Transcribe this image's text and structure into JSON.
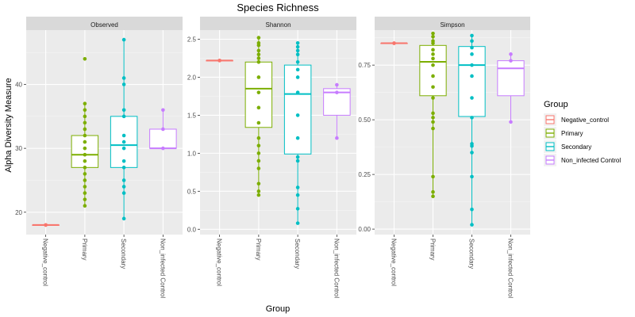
{
  "chart_data": {
    "type": "box",
    "title": "Species Richness",
    "xlabel": "Group",
    "ylabel": "Alpha Diversity Measure",
    "grid": true,
    "legend_position": "right",
    "legend": {
      "title": "Group",
      "items": [
        "Negative_control",
        "Primary",
        "Secondary",
        "Non_infected Control"
      ]
    },
    "groups": [
      "Negative_control",
      "Primary",
      "Secondary",
      "Non_infected Control"
    ],
    "colors": {
      "Negative_control": "#F8766D",
      "Primary": "#7CAE00",
      "Secondary": "#00BFC4",
      "Non_infected Control": "#C77CFF"
    },
    "panels": [
      {
        "name": "Observed",
        "ylim": [
          16.5,
          48.5
        ],
        "yticks": [
          20,
          30,
          40
        ],
        "ytick_labels": [
          "20",
          "30",
          "40"
        ],
        "boxes": [
          {
            "group": "Negative_control",
            "min": 18,
            "q1": 18,
            "median": 18,
            "q3": 18,
            "max": 18
          },
          {
            "group": "Primary",
            "min": 21,
            "q1": 27,
            "median": 29,
            "q3": 32,
            "max": 37
          },
          {
            "group": "Secondary",
            "min": 19,
            "q1": 27,
            "median": 30.5,
            "q3": 35,
            "max": 47
          },
          {
            "group": "Non_infected Control",
            "min": 30,
            "q1": 30,
            "median": 30,
            "q3": 33,
            "max": 36
          }
        ],
        "points": [
          {
            "group": "Negative_control",
            "values": [
              18,
              18
            ]
          },
          {
            "group": "Primary",
            "values": [
              21,
              22,
              23,
              24,
              25,
              26,
              27,
              28,
              29,
              30,
              31,
              32,
              33,
              34,
              35,
              36,
              37,
              44
            ]
          },
          {
            "group": "Secondary",
            "values": [
              19,
              23,
              24,
              25,
              27,
              28,
              30,
              31,
              32,
              35,
              36,
              40,
              41,
              47
            ]
          },
          {
            "group": "Non_infected Control",
            "values": [
              30,
              33,
              36
            ]
          }
        ]
      },
      {
        "name": "Shannon",
        "ylim": [
          -0.07,
          2.62
        ],
        "yticks": [
          0,
          0.5,
          1,
          1.5,
          2,
          2.5
        ],
        "ytick_labels": [
          "0.0",
          "0.5",
          "1.0",
          "1.5",
          "2.0",
          "2.5"
        ],
        "boxes": [
          {
            "group": "Negative_control",
            "min": 2.22,
            "q1": 2.22,
            "median": 2.22,
            "q3": 2.22,
            "max": 2.22
          },
          {
            "group": "Primary",
            "min": 0.45,
            "q1": 1.34,
            "median": 1.85,
            "q3": 2.2,
            "max": 2.52
          },
          {
            "group": "Secondary",
            "min": 0.08,
            "q1": 0.99,
            "median": 1.78,
            "q3": 2.16,
            "max": 2.45
          },
          {
            "group": "Non_infected Control",
            "min": 1.2,
            "q1": 1.5,
            "median": 1.8,
            "q3": 1.85,
            "max": 1.9
          }
        ],
        "points": [
          {
            "group": "Negative_control",
            "values": [
              2.22,
              2.22
            ]
          },
          {
            "group": "Primary",
            "values": [
              0.45,
              0.5,
              0.6,
              0.8,
              0.9,
              1.0,
              1.1,
              1.2,
              1.4,
              1.6,
              1.8,
              2.0,
              2.2,
              2.25,
              2.3,
              2.35,
              2.42,
              2.45,
              2.52
            ]
          },
          {
            "group": "Secondary",
            "values": [
              0.08,
              0.27,
              0.45,
              0.55,
              0.9,
              0.95,
              1.2,
              1.5,
              1.8,
              2.0,
              2.1,
              2.2,
              2.3,
              2.35,
              2.4,
              2.45
            ]
          },
          {
            "group": "Non_infected Control",
            "values": [
              1.2,
              1.8,
              1.9
            ]
          }
        ]
      },
      {
        "name": "Simpson",
        "ylim": [
          -0.025,
          0.91
        ],
        "yticks": [
          0,
          0.25,
          0.5,
          0.75
        ],
        "ytick_labels": [
          "0.00",
          "0.25",
          "0.50",
          "0.75"
        ],
        "boxes": [
          {
            "group": "Negative_control",
            "min": 0.85,
            "q1": 0.85,
            "median": 0.85,
            "q3": 0.85,
            "max": 0.85
          },
          {
            "group": "Primary",
            "min": 0.15,
            "q1": 0.61,
            "median": 0.765,
            "q3": 0.84,
            "max": 0.895
          },
          {
            "group": "Secondary",
            "min": 0.02,
            "q1": 0.515,
            "median": 0.75,
            "q3": 0.835,
            "max": 0.885
          },
          {
            "group": "Non_infected Control",
            "min": 0.49,
            "q1": 0.61,
            "median": 0.735,
            "q3": 0.77,
            "max": 0.8
          }
        ],
        "points": [
          {
            "group": "Negative_control",
            "values": [
              0.85,
              0.85
            ]
          },
          {
            "group": "Primary",
            "values": [
              0.15,
              0.17,
              0.24,
              0.46,
              0.49,
              0.51,
              0.53,
              0.6,
              0.65,
              0.7,
              0.75,
              0.78,
              0.8,
              0.82,
              0.85,
              0.86,
              0.88,
              0.895
            ]
          },
          {
            "group": "Secondary",
            "values": [
              0.02,
              0.09,
              0.24,
              0.35,
              0.38,
              0.39,
              0.51,
              0.6,
              0.7,
              0.75,
              0.8,
              0.83,
              0.86,
              0.885
            ]
          },
          {
            "group": "Non_infected Control",
            "values": [
              0.49,
              0.77,
              0.8
            ]
          }
        ]
      }
    ]
  }
}
